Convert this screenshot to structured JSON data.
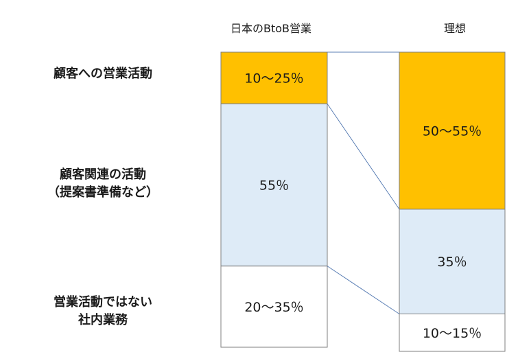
{
  "chart_data": {
    "type": "bar",
    "stacked": true,
    "categories": [
      "日本のBtoB営業",
      "理想"
    ],
    "row_labels": [
      [
        "顧客への営業活動"
      ],
      [
        "顧客関連の活動",
        "（提案書準備など）"
      ],
      [
        "営業活動ではない",
        "社内業務"
      ]
    ],
    "bars": [
      {
        "name": "日本のBtoB営業",
        "segments": [
          {
            "label": "10〜25％",
            "value": 17.5,
            "color": "#FFC000"
          },
          {
            "label": "55％",
            "value": 55,
            "color": "#DEEBF7"
          },
          {
            "label": "20〜35％",
            "value": 27.5,
            "color": "#FFFFFF"
          }
        ]
      },
      {
        "name": "理想",
        "segments": [
          {
            "label": "50〜55％",
            "value": 52.5,
            "color": "#FFC000"
          },
          {
            "label": "35％",
            "value": 35,
            "color": "#DEEBF7"
          },
          {
            "label": "10〜15％",
            "value": 12.5,
            "color": "#FFFFFF"
          }
        ]
      }
    ],
    "connector_color": "#5B7FB5",
    "border_color": "#7F7F7F"
  }
}
